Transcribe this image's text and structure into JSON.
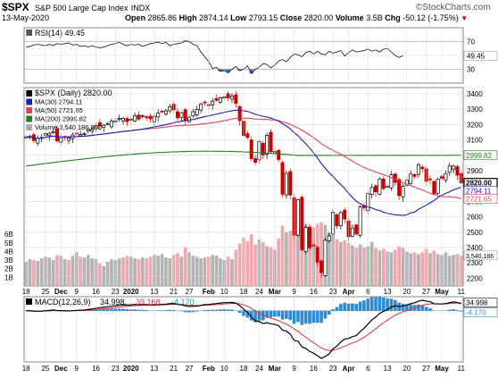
{
  "header": {
    "symbol": "$SPX",
    "name": "S&P 500 Large Cap Index",
    "exchange": "INDX",
    "date": "13-May-2020",
    "open_label": "Open",
    "open": "2865.86",
    "high_label": "High",
    "high": "2874.14",
    "low_label": "Low",
    "low": "2793.15",
    "close_label": "Close",
    "close": "2820.00",
    "volume_label": "Volume",
    "volume": "3.5B",
    "chg_label": "Chg",
    "chg": "-50.12 (-1.75%)",
    "chg_marker": "▼"
  },
  "brand": {
    "copyright": "©",
    "name": "StockCharts.com"
  },
  "colors": {
    "up": "#000000",
    "down": "#cc0000",
    "vol_up": "#b3b3b3",
    "vol_down": "#f0a8ae",
    "ma30": "#1c1cb0",
    "ma50": "#e0405a",
    "ma200": "#208020",
    "rsi_area": "#2f8a2f",
    "rsi_area_low": "#2a6bbf",
    "macd": "#000000",
    "signal": "#e03030",
    "hist": "#2e8bd1",
    "grid": "#d8d8d8"
  },
  "chart_data": [
    {
      "type": "line",
      "panel": "rsi",
      "label": "RSI(14) 49.45",
      "indicator": "RSI(14)",
      "last": 49.45,
      "y_ticks": [
        70,
        50,
        30
      ],
      "ylim": [
        10,
        90
      ],
      "values": [
        62,
        63,
        65,
        66,
        65,
        64,
        66,
        64,
        67,
        66,
        67,
        68,
        65,
        66,
        63,
        64,
        62,
        64,
        62,
        61,
        62,
        64,
        66,
        67,
        69,
        66,
        64,
        66,
        65,
        66,
        63,
        65,
        67,
        68,
        69,
        67,
        69,
        64,
        66,
        67,
        68,
        71,
        70,
        66,
        64,
        55,
        48,
        41,
        31,
        33,
        27,
        28,
        25,
        30,
        34,
        28,
        30,
        35,
        24,
        30,
        33,
        38,
        37,
        32,
        36,
        42,
        44,
        41,
        47,
        52,
        51,
        48,
        54,
        56,
        52,
        56,
        52,
        51,
        56,
        53,
        55,
        57,
        49,
        54,
        58,
        55,
        56,
        57,
        59,
        56,
        58,
        55,
        59,
        60,
        55,
        50,
        47,
        49.45
      ]
    },
    {
      "type": "candlestick",
      "panel": "price",
      "label": "$SPX (Daily) 2820.00",
      "x_ticks": [
        "18",
        "25",
        "Dec",
        "9",
        "16",
        "23",
        "2020",
        "13",
        "21",
        "27",
        "Feb",
        "10",
        "18",
        "24",
        "Mar",
        "9",
        "16",
        "23",
        "Apr",
        "6",
        "13",
        "20",
        "27",
        "May",
        "11"
      ],
      "y_ticks": [
        2200,
        2300,
        2400,
        2500,
        2600,
        2700,
        2800,
        2900,
        3000,
        3100,
        3200,
        3300,
        3400
      ],
      "ylim": [
        2150,
        3440
      ],
      "closes": [
        3120,
        3122,
        3095,
        3110,
        3115,
        3140,
        3142,
        3154,
        3093,
        3113,
        3117,
        3112,
        3132,
        3142,
        3135,
        3141,
        3168,
        3168,
        3192,
        3191,
        3195,
        3205,
        3221,
        3225,
        3240,
        3239,
        3218,
        3235,
        3258,
        3235,
        3258,
        3246,
        3237,
        3253,
        3275,
        3283,
        3289,
        3316,
        3295,
        3243,
        3276,
        3225,
        3248,
        3283,
        3298,
        3334,
        3345,
        3327,
        3352,
        3357,
        3374,
        3380,
        3373,
        3386,
        3337,
        3225,
        3128,
        3116,
        2978,
        2954,
        3090,
        3003,
        3130,
        3023,
        3024,
        2972,
        2746,
        2882,
        2741,
        2480,
        2711,
        2386,
        2529,
        2398,
        2409,
        2305,
        2237,
        2447,
        2475,
        2630,
        2541,
        2627,
        2585,
        2470,
        2527,
        2488,
        2664,
        2659,
        2750,
        2790,
        2762,
        2846,
        2783,
        2799,
        2874,
        2823,
        2737,
        2797,
        2837,
        2878,
        2863,
        2939,
        2912,
        2830,
        2842,
        2749,
        2843,
        2848,
        2881,
        2930,
        2930,
        2870,
        2820
      ],
      "volume": {
        "label": "Volume 3,540,186,880",
        "y_ticks": [
          "1B",
          "2B",
          "3B",
          "4B",
          "5B",
          "6B"
        ],
        "last": "3,540,186,880",
        "values": [
          2.8,
          3.1,
          3.0,
          2.9,
          3.2,
          3.4,
          3.3,
          3.0,
          3.6,
          3.5,
          3.1,
          3.0,
          3.5,
          3.9,
          3.4,
          3.3,
          3.6,
          3.2,
          3.1,
          2.6,
          2.3,
          2.8,
          3.1,
          3.0,
          3.2,
          3.3,
          3.5,
          3.4,
          3.2,
          3.1,
          3.3,
          3.2,
          3.4,
          3.6,
          3.5,
          3.7,
          3.3,
          3.2,
          3.6,
          3.8,
          3.4,
          4.5,
          3.9,
          3.5,
          3.4,
          3.2,
          3.3,
          3.4,
          3.6,
          3.5,
          3.2,
          3.0,
          3.4,
          3.1,
          4.2,
          4.9,
          5.6,
          5.2,
          6.0,
          4.8,
          5.4,
          5.1,
          4.6,
          4.5,
          4.2,
          5.5,
          7.0,
          6.2,
          6.4,
          7.3,
          6.7,
          8.0,
          7.2,
          6.9,
          6.8,
          7.2,
          7.4,
          7.1,
          6.2,
          5.9,
          5.4,
          5.1,
          5.3,
          5.0,
          4.7,
          4.4,
          4.8,
          4.5,
          4.6,
          5.1,
          4.4,
          4.1,
          4.3,
          4.0,
          3.9,
          4.2,
          4.6,
          4.4,
          4.0,
          3.8,
          3.9,
          3.7,
          3.9,
          4.3,
          3.8,
          4.1,
          3.7,
          3.6,
          3.9,
          3.5,
          3.6,
          3.7,
          3.54
        ]
      },
      "overlays": [
        {
          "name": "MA(30)",
          "last": 2794.11,
          "label": "MA(30) 2794.11"
        },
        {
          "name": "MA(50)",
          "last": 2721.65,
          "label": "MA(50) 2721.65"
        },
        {
          "name": "MA(200)",
          "last": 2999.82,
          "label": "MA(200) 2999.82"
        }
      ],
      "last_close": 2820.0
    },
    {
      "type": "line",
      "panel": "macd",
      "label": "MACD(12,26,9) 34.998, 39.168, -4.170",
      "parameters": "MACD(12,26,9)",
      "macd_last": 34.998,
      "signal_last": 39.168,
      "hist_last": -4.17
    }
  ],
  "right_axis_markers": {
    "ma200": "2999.82",
    "close": "2820.00",
    "ma30": "2794.11",
    "ma50": "2721.65",
    "volume": "3,540,186",
    "rsi": "49.45",
    "macd": "34.998",
    "macd_hist": "-4.170"
  },
  "legend_text": {
    "price": "$SPX (Daily) 2820.00",
    "ma30": "MA(30) 2794.11",
    "ma50": "MA(50) 2721.65",
    "ma200": "MA(200) 2999.82",
    "volume": "Volume 3,540,186,880",
    "rsi": "RSI(14) 49.45",
    "macd_name": "MACD(12,26,9)",
    "macd_val": "34.998,",
    "signal_val": "39.168,",
    "hist_val": "-4.170"
  }
}
